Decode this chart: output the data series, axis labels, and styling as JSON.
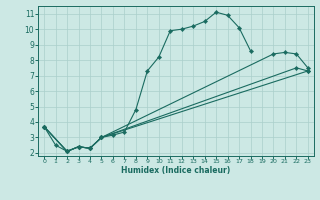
{
  "bg_color": "#cce8e4",
  "grid_color": "#aacfcb",
  "line_color": "#1a6b60",
  "marker_color": "#1a6b60",
  "xlabel": "Humidex (Indice chaleur)",
  "xlim": [
    -0.5,
    23.5
  ],
  "ylim": [
    1.8,
    11.5
  ],
  "xticks": [
    0,
    1,
    2,
    3,
    4,
    5,
    6,
    7,
    8,
    9,
    10,
    11,
    12,
    13,
    14,
    15,
    16,
    17,
    18,
    19,
    20,
    21,
    22,
    23
  ],
  "yticks": [
    2,
    3,
    4,
    5,
    6,
    7,
    8,
    9,
    10,
    11
  ],
  "curves": [
    {
      "x": [
        0,
        1,
        2,
        3,
        4,
        5,
        6,
        7,
        8,
        9,
        10,
        11,
        12,
        13,
        14,
        15,
        16,
        17,
        18
      ],
      "y": [
        3.7,
        2.5,
        2.1,
        2.4,
        2.3,
        3.0,
        3.15,
        3.35,
        4.8,
        7.3,
        8.2,
        9.9,
        10.0,
        10.2,
        10.5,
        11.1,
        10.9,
        10.1,
        8.6
      ]
    },
    {
      "x": [
        0,
        2,
        3,
        4,
        5,
        22,
        23
      ],
      "y": [
        3.7,
        2.1,
        2.4,
        2.3,
        3.0,
        7.5,
        7.3
      ]
    },
    {
      "x": [
        0,
        2,
        3,
        4,
        5,
        20,
        21,
        22,
        23
      ],
      "y": [
        3.7,
        2.1,
        2.4,
        2.3,
        3.0,
        8.4,
        8.5,
        8.4,
        7.5
      ]
    },
    {
      "x": [
        0,
        2,
        3,
        4,
        5,
        23
      ],
      "y": [
        3.7,
        2.1,
        2.4,
        2.3,
        3.0,
        7.3
      ]
    }
  ]
}
